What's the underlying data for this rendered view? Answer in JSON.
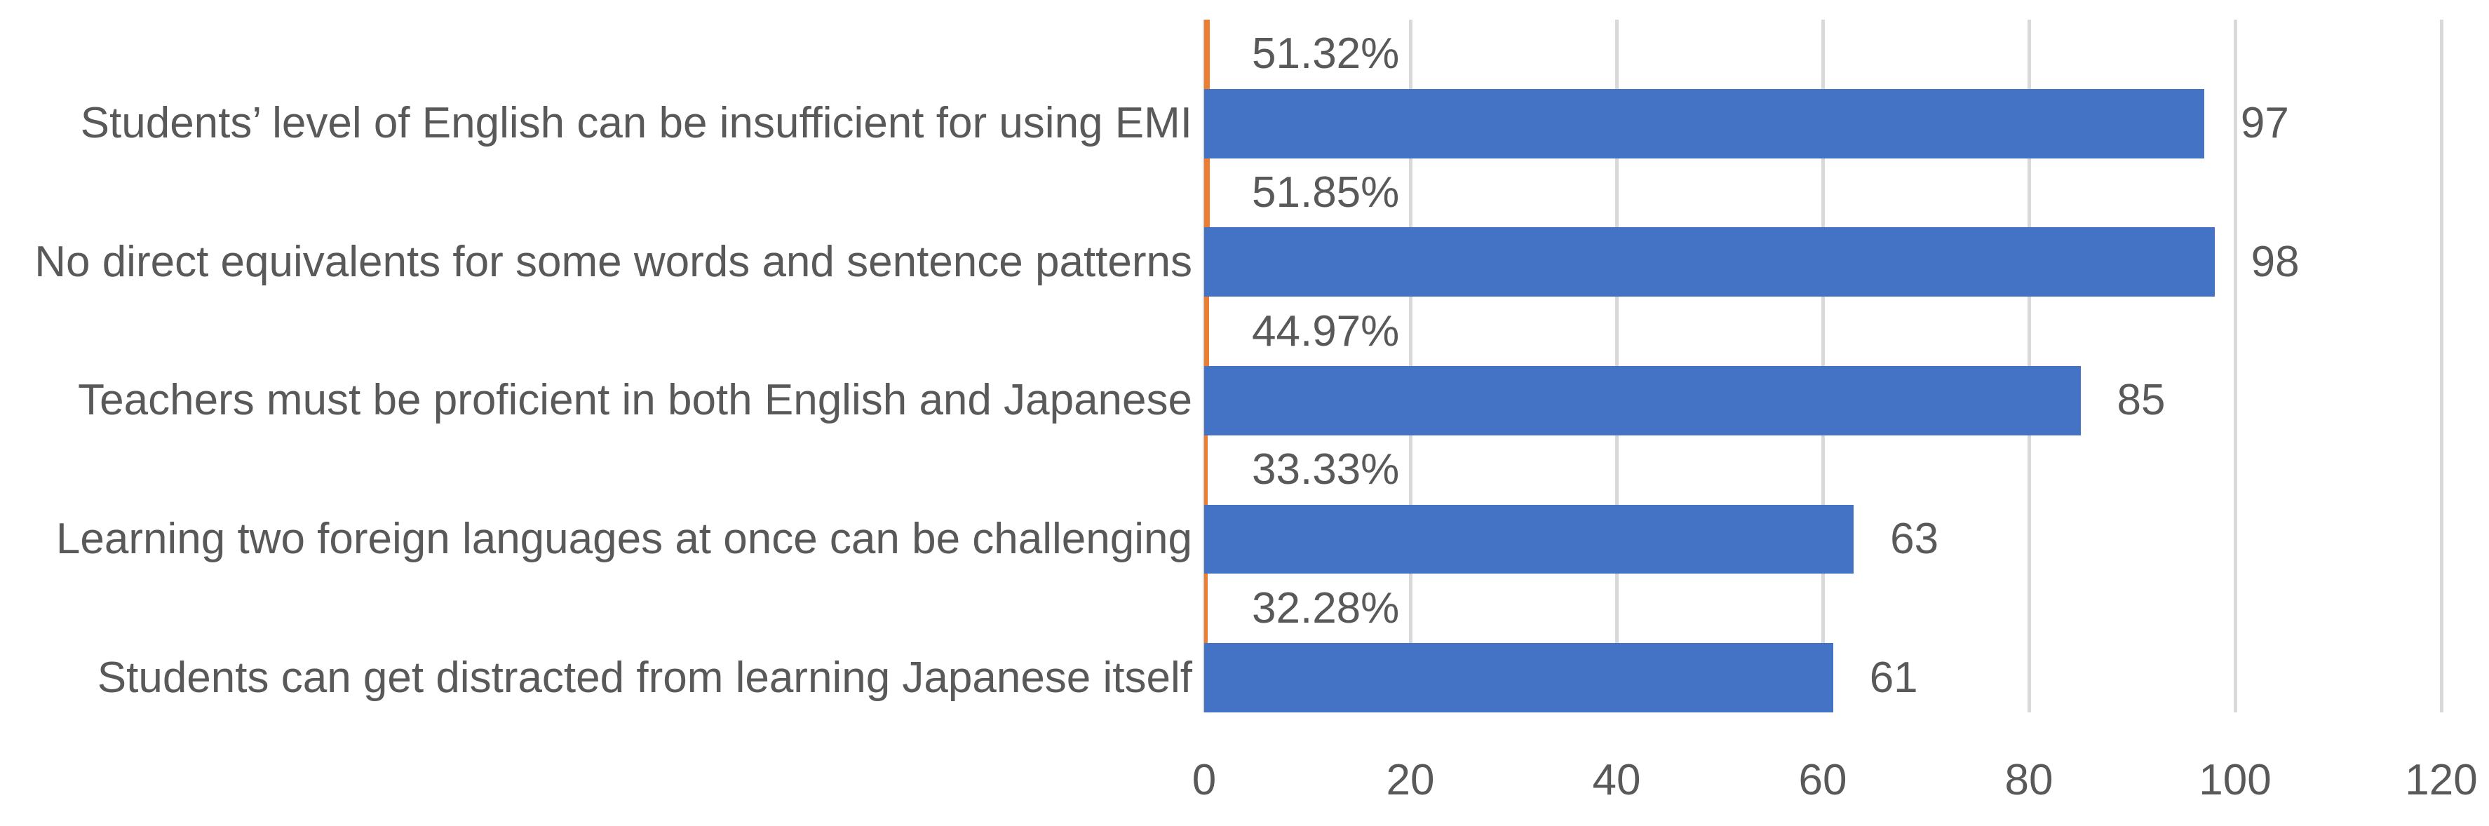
{
  "chart_data": {
    "type": "bar",
    "orientation": "horizontal",
    "title": "",
    "categories": [
      "Students’ level of English can be insufficient for using EMI",
      "No direct equivalents for some words and sentence patterns",
      "Teachers must be proficient in both English and Japanese",
      "Learning two foreign languages at once can be challenging",
      "Students can get distracted from learning Japanese itself"
    ],
    "series": [
      {
        "name": "percentage-series",
        "color": "#ED7D31",
        "values": [
          0.5132,
          0.5185,
          0.4497,
          0.3333,
          0.3228
        ],
        "data_labels": [
          "51.32%",
          "51.85%",
          "44.97%",
          "33.33%",
          "32.28%"
        ]
      },
      {
        "name": "count-series",
        "color": "#4472C4",
        "values": [
          97,
          98,
          85,
          63,
          61
        ],
        "data_labels": [
          "97",
          "98",
          "85",
          "63",
          "61"
        ]
      }
    ],
    "xlim": [
      0,
      120
    ],
    "x_ticks": [
      "0",
      "20",
      "40",
      "60",
      "80",
      "100",
      "120"
    ],
    "grid": true,
    "legend_position": "none",
    "gridline_color": "#D9D9D9",
    "text_color": "#595959"
  }
}
